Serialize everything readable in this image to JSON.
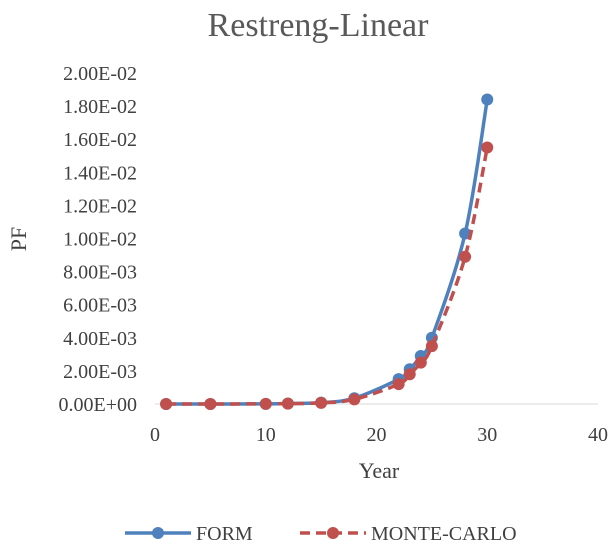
{
  "chart_data": {
    "type": "scatter",
    "title": "Restreng-Linear",
    "xlabel": "Year",
    "ylabel": "PF",
    "xlim": [
      0,
      40
    ],
    "ylim": [
      0,
      0.02
    ],
    "x_ticks": [
      0,
      10,
      20,
      30,
      40
    ],
    "x_tick_labels": [
      "0",
      "10",
      "20",
      "30",
      "40"
    ],
    "y_ticks": [
      0,
      0.002,
      0.004,
      0.006,
      0.008,
      0.01,
      0.012,
      0.014,
      0.016,
      0.018,
      0.02
    ],
    "y_tick_labels": [
      "0.00E+00",
      "2.00E-03",
      "4.00E-03",
      "6.00E-03",
      "8.00E-03",
      "1.00E-02",
      "1.20E-02",
      "1.40E-02",
      "1.60E-02",
      "1.80E-02",
      "2.00E-02"
    ],
    "grid": false,
    "legend_position": "bottom",
    "series": [
      {
        "name": "FORM",
        "color": "#4f81bd",
        "line_style": "solid",
        "marker": "circle",
        "x": [
          1,
          5,
          10,
          12,
          15,
          18,
          22,
          23,
          24,
          25,
          28,
          30
        ],
        "y": [
          0.0,
          0.0,
          1e-05,
          3e-05,
          8e-05,
          0.00035,
          0.0015,
          0.0021,
          0.0029,
          0.004,
          0.0103,
          0.0184
        ]
      },
      {
        "name": "MONTE-CARLO",
        "color": "#c0504d",
        "line_style": "dashed",
        "marker": "circle",
        "x": [
          1,
          5,
          10,
          12,
          15,
          18,
          22,
          23,
          24,
          25,
          28,
          30
        ],
        "y": [
          0.0,
          0.0,
          1e-05,
          2e-05,
          7e-05,
          0.00028,
          0.0012,
          0.0018,
          0.0025,
          0.0035,
          0.0089,
          0.0155
        ]
      }
    ]
  }
}
